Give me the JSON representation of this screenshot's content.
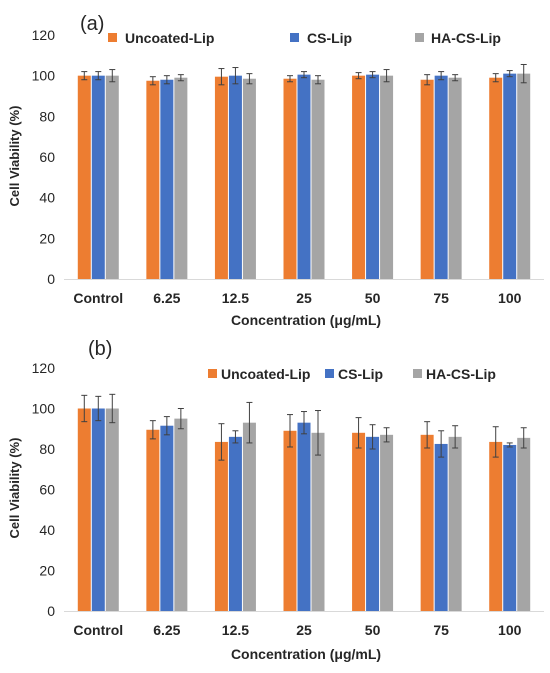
{
  "colors": {
    "uncoated": "#ED7D31",
    "cs": "#4472C4",
    "hacs": "#A5A5A5",
    "axis": "#D9D9D9",
    "text": "#262626",
    "errorbar": "#404040"
  },
  "chart_data": [
    {
      "type": "bar",
      "panel_label": "(a)",
      "categories": [
        "Control",
        "6.25",
        "12.5",
        "25",
        "50",
        "75",
        "100"
      ],
      "xlabel": "Concentration (μg/mL)",
      "ylabel": "Cell Viability (%)",
      "ylim": [
        0,
        120
      ],
      "yticks": [
        0,
        20,
        40,
        60,
        80,
        100,
        120
      ],
      "grid": false,
      "legend_position": "top",
      "series": [
        {
          "name": "Uncoated-Lip",
          "color": "#ED7D31",
          "values": [
            100,
            97.5,
            99.5,
            98.5,
            100,
            98,
            99
          ],
          "errors": [
            2,
            2,
            4,
            1.5,
            1.5,
            2.5,
            2
          ]
        },
        {
          "name": "CS-Lip",
          "color": "#4472C4",
          "values": [
            100,
            98,
            100,
            100.5,
            100.5,
            100,
            101
          ],
          "errors": [
            2,
            2,
            4,
            1.5,
            1.5,
            2,
            1.5
          ]
        },
        {
          "name": "HA-CS-Lip",
          "color": "#A5A5A5",
          "values": [
            100,
            99,
            98.5,
            98,
            100,
            99,
            101
          ],
          "errors": [
            3,
            1.5,
            2.5,
            2,
            3,
            1.5,
            4.5
          ]
        }
      ]
    },
    {
      "type": "bar",
      "panel_label": "(b)",
      "categories": [
        "Control",
        "6.25",
        "12.5",
        "25",
        "50",
        "75",
        "100"
      ],
      "xlabel": "Concentration (μg/mL)",
      "ylabel": "Cell Viability (%)",
      "ylim": [
        0,
        120
      ],
      "yticks": [
        0,
        20,
        40,
        60,
        80,
        100,
        120
      ],
      "grid": false,
      "legend_position": "top",
      "series": [
        {
          "name": "Uncoated-Lip",
          "color": "#ED7D31",
          "values": [
            100,
            89.5,
            83.5,
            89,
            88,
            87,
            83.5
          ],
          "errors": [
            6.5,
            4.5,
            9,
            8,
            7.5,
            6.5,
            7.5
          ]
        },
        {
          "name": "CS-Lip",
          "color": "#4472C4",
          "values": [
            100,
            91.5,
            86,
            93,
            86,
            82.5,
            82
          ],
          "errors": [
            6,
            4.5,
            3,
            5.5,
            6,
            6.5,
            1
          ]
        },
        {
          "name": "HA-CS-Lip",
          "color": "#A5A5A5",
          "values": [
            100,
            95,
            93,
            88,
            87,
            86,
            85.5
          ],
          "errors": [
            7,
            5,
            10,
            11,
            3.5,
            5.5,
            5
          ]
        }
      ]
    }
  ]
}
